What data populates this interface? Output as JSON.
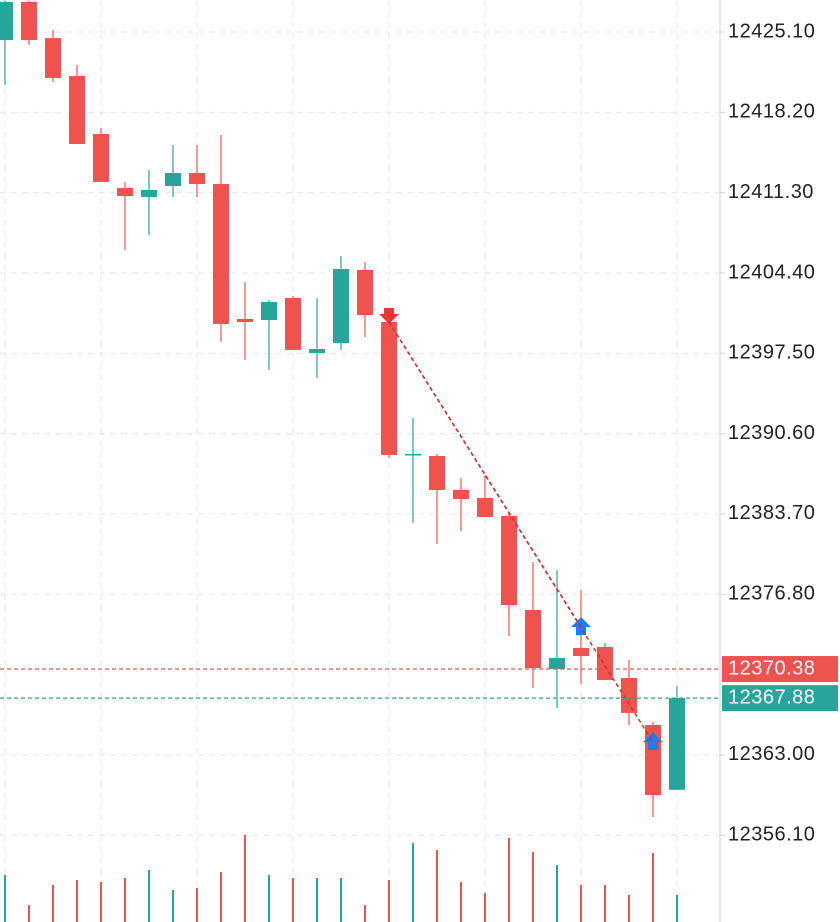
{
  "chart_data": {
    "type": "candlestick",
    "up_color": "#26a69a",
    "down_color": "#ef5350",
    "open": [
      12424.41,
      12427.68,
      12424.58,
      12421.32,
      12416.34,
      12411.7,
      12410.93,
      12411.87,
      12412.99,
      12412.04,
      12400.45,
      12400.36,
      12402.25,
      12397.53,
      12398.39,
      12404.66,
      12400.19,
      12388.77,
      12388.68,
      12385.76,
      12385.07,
      12383.53,
      12375.45,
      12370.38,
      12372.19,
      12372.27,
      12369.61,
      12365.57,
      12360.0
    ],
    "high": [
      12427.8,
      12427.8,
      12425.27,
      12422.27,
      12416.85,
      12412.22,
      12413.25,
      12415.39,
      12415.39,
      12416.25,
      12403.63,
      12402.08,
      12402.42,
      12402.25,
      12405.86,
      12405.34,
      12400.96,
      12391.94,
      12388.85,
      12386.79,
      12387.05,
      12383.87,
      12379.58,
      12378.89,
      12377.17,
      12372.62,
      12371.16,
      12365.83,
      12368.92
    ],
    "low": [
      12420.55,
      12423.98,
      12420.81,
      12415.48,
      12412.22,
      12406.37,
      12407.66,
      12410.93,
      12410.93,
      12398.47,
      12396.93,
      12396.07,
      12397.79,
      12395.38,
      12397.79,
      12398.9,
      12388.51,
      12382.92,
      12381.12,
      12382.24,
      12383.44,
      12373.22,
      12368.75,
      12367.03,
      12369.1,
      12369.44,
      12365.57,
      12357.67,
      12360.0
    ],
    "close": [
      12427.68,
      12424.41,
      12421.15,
      12415.48,
      12412.22,
      12411.01,
      12411.53,
      12412.99,
      12412.04,
      12400.02,
      12400.19,
      12401.91,
      12397.79,
      12397.87,
      12404.74,
      12400.79,
      12388.77,
      12388.85,
      12385.76,
      12384.99,
      12383.44,
      12375.88,
      12370.47,
      12371.33,
      12371.5,
      12369.44,
      12366.61,
      12359.56,
      12367.88
    ],
    "volume": [
      47,
      17,
      37,
      42,
      40,
      44,
      52,
      32,
      34,
      50,
      87,
      47,
      44,
      44,
      44,
      17,
      42,
      79,
      72,
      40,
      29,
      84,
      70,
      57,
      37,
      37,
      27,
      69,
      27
    ],
    "volume_ylim": [
      0,
      100
    ],
    "ylim": [
      12348.65,
      12427.85
    ],
    "yticks": [
      {
        "value": 12425.1,
        "label": "12425.10"
      },
      {
        "value": 12418.2,
        "label": "12418.20"
      },
      {
        "value": 12411.3,
        "label": "12411.30"
      },
      {
        "value": 12404.4,
        "label": "12404.40"
      },
      {
        "value": 12397.5,
        "label": "12397.50"
      },
      {
        "value": 12390.6,
        "label": "12390.60"
      },
      {
        "value": 12383.7,
        "label": "12383.70"
      },
      {
        "value": 12376.8,
        "label": "12376.80"
      },
      {
        "value": 12363.0,
        "label": "12363.00"
      },
      {
        "value": 12356.1,
        "label": "12356.10"
      }
    ],
    "grid": true,
    "price_lines": [
      {
        "value": 12370.38,
        "color": "#ef5350"
      },
      {
        "value": 12367.88,
        "color": "#26a69a"
      }
    ],
    "signals": [
      {
        "index": 16,
        "side": "sell",
        "price": 12400.19,
        "color": "#e53935"
      },
      {
        "index": 24,
        "side": "buy",
        "price": 12373.99,
        "color": "#1e7cf2"
      },
      {
        "index": 27,
        "side": "buy",
        "price": 12364.1,
        "color": "#1e7cf2"
      }
    ]
  }
}
